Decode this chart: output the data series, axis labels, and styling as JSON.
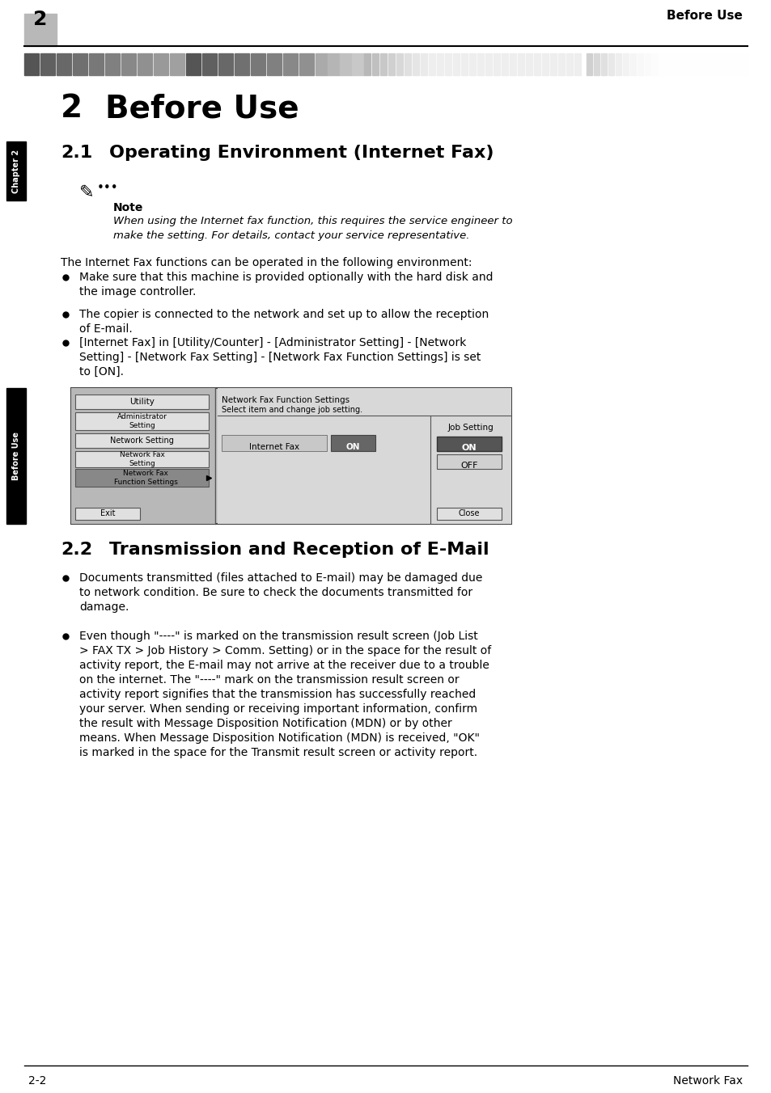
{
  "page_bg": "#ffffff",
  "header_num": "2",
  "header_num_bg": "#b8b8b8",
  "header_text": "Before Use",
  "chapter2_title_num": "2",
  "chapter2_title_text": "Before Use",
  "section21_num": "2.1",
  "section21_text": "Operating Environment (Internet Fax)",
  "note_label": "Note",
  "note_italic_line1": "When using the Internet fax function, this requires the service engineer to",
  "note_italic_line2": "make the setting. For details, contact your service representative.",
  "intro_text": "The Internet Fax functions can be operated in the following environment:",
  "bullet1_line1": "Make sure that this machine is provided optionally with the hard disk and",
  "bullet1_line2": "the image controller.",
  "bullet2_line1": "The copier is connected to the network and set up to allow the reception",
  "bullet2_line2": "of E-mail.",
  "bullet3_line1": "[Internet Fax] in [Utility/Counter] - [Administrator Setting] - [Network",
  "bullet3_line2": "Setting] - [Network Fax Setting] - [Network Fax Function Settings] is set",
  "bullet3_line3": "to [ON].",
  "section22_num": "2.2",
  "section22_text": "Transmission and Reception of E-Mail",
  "b22_1_l1": "Documents transmitted (files attached to E-mail) may be damaged due",
  "b22_1_l2": "to network condition. Be sure to check the documents transmitted for",
  "b22_1_l3": "damage.",
  "b22_2_l1": "Even though \"----\" is marked on the transmission result screen (Job List",
  "b22_2_l2": "> FAX TX > Job History > Comm. Setting) or in the space for the result of",
  "b22_2_l3": "activity report, the E-mail may not arrive at the receiver due to a trouble",
  "b22_2_l4": "on the internet. The \"----\" mark on the transmission result screen or",
  "b22_2_l5": "activity report signifies that the transmission has successfully reached",
  "b22_2_l6": "your server. When sending or receiving important information, confirm",
  "b22_2_l7": "the result with Message Disposition Notification (MDN) or by other",
  "b22_2_l8": "means. When Message Disposition Notification (MDN) is received, \"OK\"",
  "b22_2_l9": "is marked in the space for the Transmit result screen or activity report.",
  "footer_left": "2-2",
  "footer_right": "Network Fax",
  "chapter_side_label": "Chapter 2",
  "beforeuse_side_label": "Before Use",
  "deco_bar_colors_left": [
    "#444444",
    "#555555",
    "#666666",
    "#777777",
    "#888888",
    "#999999",
    "#aaaaaa",
    "#b0b0b0",
    "#b8b8b8",
    "#c0c0c0",
    "#cccccc",
    "#d5d5d5",
    "#dddddd"
  ],
  "deco_bar_colors_right": [
    "#888888",
    "#999999",
    "#aaaaaa",
    "#b5b5b5",
    "#c5c5c5",
    "#d5d5d5",
    "#e0e0e0",
    "#e8e8e8",
    "#f0f0f0",
    "#f5f5f5",
    "#f8f8f8",
    "#ffffff"
  ]
}
